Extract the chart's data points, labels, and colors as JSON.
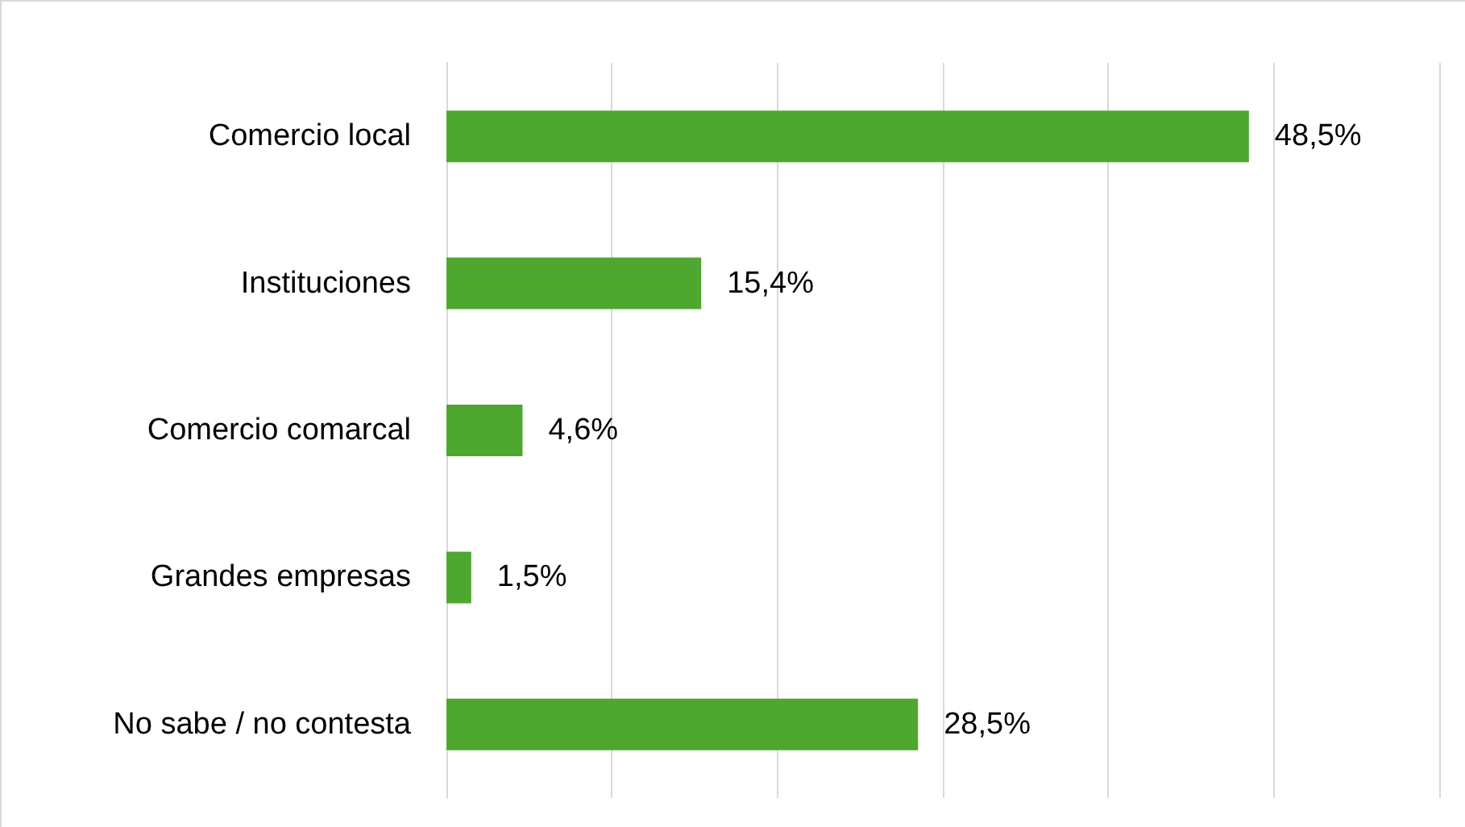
{
  "chart_data": {
    "type": "bar",
    "orientation": "horizontal",
    "categories": [
      "Comercio local",
      "Instituciones",
      "Comercio comarcal",
      "Grandes empresas",
      "No sabe / no contesta"
    ],
    "values": [
      48.5,
      15.4,
      4.6,
      1.5,
      28.5
    ],
    "value_labels": [
      "48,5%",
      "15,4%",
      "4,6%",
      "1,5%",
      "28,5%"
    ],
    "color": "#4ea72e",
    "xlim": [
      0,
      60
    ],
    "xticks": [
      0,
      10,
      20,
      30,
      40,
      50,
      60
    ],
    "tick_labels": "y",
    "grid": "x"
  }
}
